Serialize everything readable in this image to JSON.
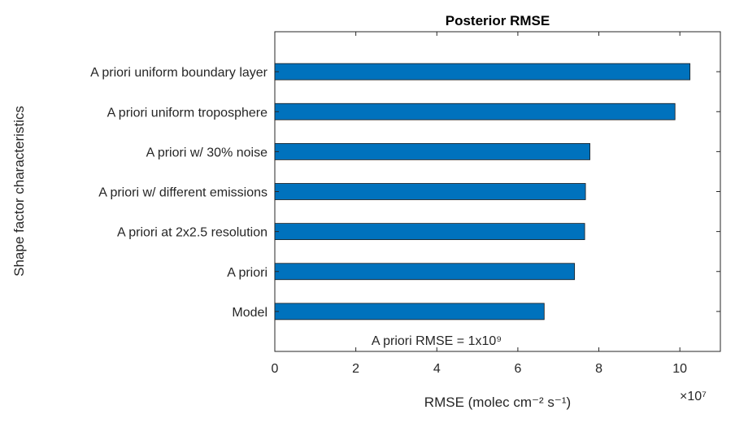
{
  "chart_data": {
    "type": "bar",
    "orientation": "horizontal",
    "title": "Posterior RMSE",
    "xlabel": "RMSE (molec cm⁻² s⁻¹)",
    "ylabel": "Shape factor characteristics",
    "x_exponent_label": "×10⁷",
    "xlim": [
      0,
      11
    ],
    "xticks": [
      0,
      2,
      4,
      6,
      8,
      10
    ],
    "categories": [
      "Model",
      "A priori",
      "A priori at 2x2.5 resolution",
      "A priori w/ different emissions",
      "A priori w/ 30% noise",
      "A priori uniform troposphere",
      "A priori uniform boundary layer"
    ],
    "values": [
      6.65,
      7.4,
      7.65,
      7.67,
      7.78,
      9.88,
      10.25
    ],
    "bar_color": "#0072BD",
    "annotation": "A priori RMSE = 1x10⁹",
    "grid": false,
    "legend": "none"
  }
}
